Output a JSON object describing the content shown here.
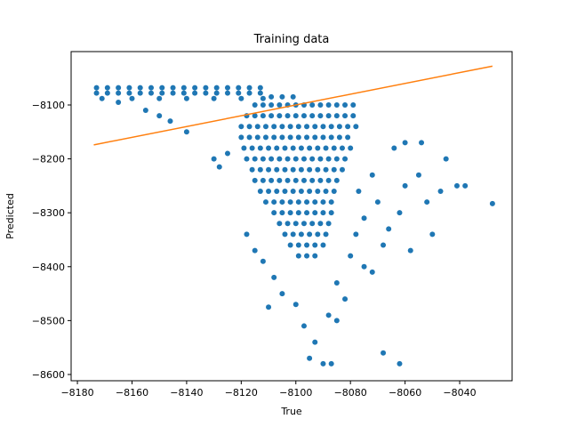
{
  "chart_data": {
    "type": "scatter",
    "title": "Training data",
    "xlabel": "True",
    "ylabel": "Predicted",
    "xlim": [
      -8182.3,
      -8020.8
    ],
    "ylim": [
      -8611.6,
      -8001
    ],
    "xticks": [
      {
        "value": -8180,
        "label": "−8180"
      },
      {
        "value": -8160,
        "label": "−8160"
      },
      {
        "value": -8140,
        "label": "−8140"
      },
      {
        "value": -8120,
        "label": "−8120"
      },
      {
        "value": -8100,
        "label": "−8100"
      },
      {
        "value": -8080,
        "label": "−8080"
      },
      {
        "value": -8060,
        "label": "−8060"
      },
      {
        "value": -8040,
        "label": "−8040"
      }
    ],
    "yticks": [
      {
        "value": -8600,
        "label": "−8600"
      },
      {
        "value": -8500,
        "label": "−8500"
      },
      {
        "value": -8400,
        "label": "−8400"
      },
      {
        "value": -8300,
        "label": "−8300"
      },
      {
        "value": -8200,
        "label": "−8200"
      },
      {
        "value": -8100,
        "label": "−8100"
      }
    ],
    "series": [
      {
        "type": "scatter",
        "color": "#1f77b4",
        "x": [
          -8173,
          -8169,
          -8165,
          -8161,
          -8157,
          -8153,
          -8149,
          -8145,
          -8141,
          -8137,
          -8133,
          -8129,
          -8125,
          -8121,
          -8117,
          -8113,
          -8173,
          -8169,
          -8165,
          -8161,
          -8157,
          -8153,
          -8149,
          -8145,
          -8141,
          -8137,
          -8133,
          -8129,
          -8125,
          -8121,
          -8117,
          -8113,
          -8109,
          -8105,
          -8101,
          -8171,
          -8160,
          -8150,
          -8140,
          -8130,
          -8120,
          -8112,
          -8115,
          -8112,
          -8109,
          -8106,
          -8103,
          -8100,
          -8097,
          -8094,
          -8091,
          -8088,
          -8085,
          -8082,
          -8079,
          -8118,
          -8115,
          -8112,
          -8109,
          -8106,
          -8103,
          -8100,
          -8097,
          -8094,
          -8091,
          -8088,
          -8085,
          -8082,
          -8079,
          -8120,
          -8117,
          -8114,
          -8111,
          -8108,
          -8105,
          -8102,
          -8099,
          -8096,
          -8093,
          -8090,
          -8087,
          -8084,
          -8081,
          -8078,
          -8120,
          -8117,
          -8114,
          -8111,
          -8108,
          -8105,
          -8102,
          -8099,
          -8096,
          -8093,
          -8090,
          -8087,
          -8084,
          -8081,
          -8119,
          -8116,
          -8113,
          -8110,
          -8107,
          -8104,
          -8101,
          -8098,
          -8095,
          -8092,
          -8089,
          -8086,
          -8083,
          -8080,
          -8118,
          -8115,
          -8112,
          -8109,
          -8106,
          -8103,
          -8100,
          -8097,
          -8094,
          -8091,
          -8088,
          -8085,
          -8082,
          -8116,
          -8113,
          -8110,
          -8107,
          -8104,
          -8101,
          -8098,
          -8095,
          -8092,
          -8089,
          -8086,
          -8083,
          -8115,
          -8112,
          -8109,
          -8106,
          -8103,
          -8100,
          -8097,
          -8094,
          -8091,
          -8088,
          -8085,
          -8113,
          -8110,
          -8107,
          -8104,
          -8101,
          -8098,
          -8095,
          -8092,
          -8089,
          -8086,
          -8111,
          -8108,
          -8105,
          -8102,
          -8099,
          -8096,
          -8093,
          -8090,
          -8087,
          -8108,
          -8105,
          -8102,
          -8099,
          -8096,
          -8093,
          -8090,
          -8087,
          -8106,
          -8103,
          -8100,
          -8097,
          -8094,
          -8091,
          -8088,
          -8104,
          -8101,
          -8098,
          -8095,
          -8092,
          -8089,
          -8102,
          -8099,
          -8096,
          -8093,
          -8090,
          -8099,
          -8096,
          -8093,
          -8130,
          -8128,
          -8125,
          -8140,
          -8146,
          -8150,
          -8165,
          -8155,
          -8118,
          -8115,
          -8112,
          -8108,
          -8105,
          -8100,
          -8097,
          -8093,
          -8095,
          -8090,
          -8087,
          -8085,
          -8082,
          -8080,
          -8078,
          -8075,
          -8077,
          -8072,
          -8070,
          -8066,
          -8062,
          -8060,
          -8058,
          -8055,
          -8052,
          -8050,
          -8047,
          -8045,
          -8041,
          -8038,
          -8028,
          -8064,
          -8060,
          -8054,
          -8068,
          -8062,
          -8075,
          -8072,
          -8068,
          -8085,
          -8110,
          -8088
        ],
        "y": [
          -8068,
          -8068,
          -8068,
          -8068,
          -8068,
          -8068,
          -8068,
          -8068,
          -8068,
          -8068,
          -8068,
          -8068,
          -8068,
          -8068,
          -8068,
          -8068,
          -8078,
          -8078,
          -8078,
          -8078,
          -8078,
          -8078,
          -8078,
          -8078,
          -8078,
          -8078,
          -8078,
          -8078,
          -8078,
          -8078,
          -8078,
          -8078,
          -8085,
          -8085,
          -8085,
          -8088,
          -8088,
          -8088,
          -8088,
          -8088,
          -8088,
          -8088,
          -8100,
          -8100,
          -8100,
          -8100,
          -8100,
          -8100,
          -8100,
          -8100,
          -8100,
          -8100,
          -8100,
          -8100,
          -8100,
          -8120,
          -8120,
          -8120,
          -8120,
          -8120,
          -8120,
          -8120,
          -8120,
          -8120,
          -8120,
          -8120,
          -8120,
          -8120,
          -8120,
          -8140,
          -8140,
          -8140,
          -8140,
          -8140,
          -8140,
          -8140,
          -8140,
          -8140,
          -8140,
          -8140,
          -8140,
          -8140,
          -8140,
          -8140,
          -8160,
          -8160,
          -8160,
          -8160,
          -8160,
          -8160,
          -8160,
          -8160,
          -8160,
          -8160,
          -8160,
          -8160,
          -8160,
          -8160,
          -8180,
          -8180,
          -8180,
          -8180,
          -8180,
          -8180,
          -8180,
          -8180,
          -8180,
          -8180,
          -8180,
          -8180,
          -8180,
          -8180,
          -8200,
          -8200,
          -8200,
          -8200,
          -8200,
          -8200,
          -8200,
          -8200,
          -8200,
          -8200,
          -8200,
          -8200,
          -8200,
          -8220,
          -8220,
          -8220,
          -8220,
          -8220,
          -8220,
          -8220,
          -8220,
          -8220,
          -8220,
          -8220,
          -8220,
          -8240,
          -8240,
          -8240,
          -8240,
          -8240,
          -8240,
          -8240,
          -8240,
          -8240,
          -8240,
          -8240,
          -8260,
          -8260,
          -8260,
          -8260,
          -8260,
          -8260,
          -8260,
          -8260,
          -8260,
          -8260,
          -8280,
          -8280,
          -8280,
          -8280,
          -8280,
          -8280,
          -8280,
          -8280,
          -8280,
          -8300,
          -8300,
          -8300,
          -8300,
          -8300,
          -8300,
          -8300,
          -8300,
          -8320,
          -8320,
          -8320,
          -8320,
          -8320,
          -8320,
          -8320,
          -8340,
          -8340,
          -8340,
          -8340,
          -8340,
          -8340,
          -8360,
          -8360,
          -8360,
          -8360,
          -8360,
          -8380,
          -8380,
          -8380,
          -8200,
          -8215,
          -8190,
          -8150,
          -8130,
          -8120,
          -8095,
          -8110,
          -8340,
          -8370,
          -8390,
          -8420,
          -8450,
          -8470,
          -8510,
          -8540,
          -8570,
          -8580,
          -8580,
          -8430,
          -8460,
          -8380,
          -8340,
          -8310,
          -8260,
          -8230,
          -8280,
          -8330,
          -8300,
          -8250,
          -8370,
          -8230,
          -8280,
          -8340,
          -8260,
          -8200,
          -8250,
          -8250,
          -8283,
          -8180,
          -8170,
          -8170,
          -8560,
          -8580,
          -8400,
          -8410,
          -8360,
          -8500,
          -8475,
          -8490
        ]
      },
      {
        "type": "line",
        "color": "#ff7f0e",
        "x": [
          -8174,
          -8028
        ],
        "y": [
          -8174,
          -8028
        ]
      }
    ]
  }
}
